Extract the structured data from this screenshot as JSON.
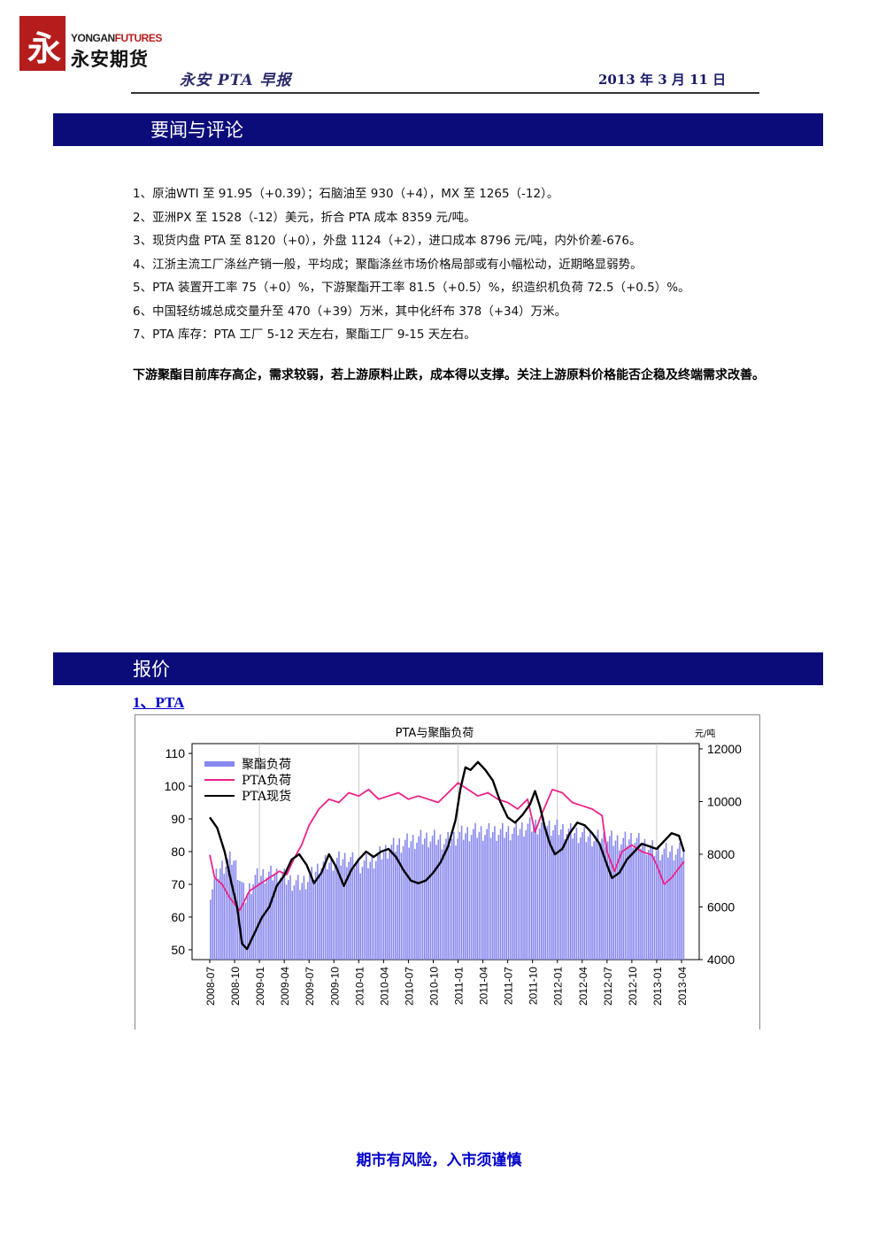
{
  "logo": {
    "en_prefix": "YONGAN",
    "en_suffix": "FUTURES",
    "cn": "永安期货",
    "mark_glyph": "永"
  },
  "header": {
    "title": "永安 PTA 早报",
    "date": "2013 年 3 月 11 日"
  },
  "sections": {
    "news_title": "要闻与评论",
    "quote_title": "报价"
  },
  "news": [
    "1、原油WTI 至 91.95（+0.39）；石脑油至 930（+4），MX 至 1265（-12）。",
    "2、亚洲PX 至 1528（-12）美元，折合 PTA 成本 8359 元/吨。",
    "3、现货内盘 PTA 至 8120（+0），外盘 1124（+2），进口成本 8796 元/吨，内外价差-676。",
    "4、江浙主流工厂涤丝产销一般，平均成；聚酯涤丝市场价格局部或有小幅松动，近期略显弱势。",
    "5、PTA 装置开工率 75（+0）%，下游聚酯开工率 81.5（+0.5）%，织造织机负荷 72.5（+0.5）%。",
    "6、中国轻纺城总成交量升至 470（+39）万米，其中化纤布 378（+34）万米。",
    "7、PTA 库存：PTA 工厂 5-12 天左右，聚酯工厂 9-15 天左右。"
  ],
  "summary": "下游聚酯目前库存高企，需求较弱，若上游原料止跌，成本得以支撑。关注上游原料价格能否企稳及终端需求改善。",
  "pta_label": "1、PTA",
  "footer": "期市有风险，入市须谨慎",
  "colors": {
    "banner": "#0b0b7a",
    "bars": "#8888ee",
    "pta_load": "#ee2288",
    "pta_spot": "#000000",
    "link": "#0000cc"
  },
  "chart_data": {
    "type": "bar+line",
    "title": "PTA与聚酯负荷",
    "y_right_unit": "元/吨",
    "y_left": {
      "ticks": [
        50,
        60,
        70,
        80,
        90,
        100,
        110
      ],
      "range": [
        47,
        113
      ]
    },
    "y_right": {
      "ticks": [
        4000,
        6000,
        8000,
        10000,
        12000
      ],
      "range": [
        4000,
        12200
      ]
    },
    "x_ticks": [
      "2008-07",
      "2008-10",
      "2009-01",
      "2009-04",
      "2009-07",
      "2009-10",
      "2010-01",
      "2010-04",
      "2010-07",
      "2010-10",
      "2011-01",
      "2011-04",
      "2011-07",
      "2011-10",
      "2012-01",
      "2012-04",
      "2012-07",
      "2012-10",
      "2013-01",
      "2013-04"
    ],
    "legend_placement": "top-left",
    "series": [
      {
        "name": "聚酯负荷",
        "kind": "bar",
        "axis": "left",
        "points": [
          [
            0,
            68
          ],
          [
            0.4,
            75
          ],
          [
            0.9,
            78
          ],
          [
            1.1,
            74
          ],
          [
            1.4,
            66
          ],
          [
            1.8,
            72
          ],
          [
            2.2,
            73
          ],
          [
            2.8,
            73
          ],
          [
            3.2,
            71
          ],
          [
            3.6,
            70
          ],
          [
            4,
            72
          ],
          [
            4.5,
            76
          ],
          [
            5,
            77
          ],
          [
            5.5,
            78
          ],
          [
            6,
            76
          ],
          [
            6.5,
            77
          ],
          [
            7,
            80
          ],
          [
            7.5,
            82
          ],
          [
            8,
            83
          ],
          [
            8.5,
            84
          ],
          [
            9,
            84
          ],
          [
            9.5,
            83
          ],
          [
            10,
            85
          ],
          [
            10.5,
            86
          ],
          [
            11,
            86
          ],
          [
            11.5,
            86
          ],
          [
            12,
            86
          ],
          [
            12.5,
            87
          ],
          [
            13,
            88
          ],
          [
            13.5,
            88
          ],
          [
            14,
            87
          ],
          [
            14.5,
            86
          ],
          [
            15,
            85
          ],
          [
            15.5,
            84
          ],
          [
            16,
            84
          ],
          [
            16.5,
            83
          ],
          [
            17,
            84
          ],
          [
            17.5,
            82
          ],
          [
            18,
            80
          ],
          [
            18.5,
            80
          ],
          [
            19,
            80
          ]
        ]
      },
      {
        "name": "PTA负荷",
        "kind": "line",
        "axis": "left",
        "points": [
          [
            0,
            79
          ],
          [
            0.2,
            72
          ],
          [
            0.5,
            70
          ],
          [
            0.8,
            66
          ],
          [
            1.2,
            62
          ],
          [
            1.6,
            68
          ],
          [
            2,
            70
          ],
          [
            2.4,
            72
          ],
          [
            2.8,
            74
          ],
          [
            3.1,
            73
          ],
          [
            3.4,
            78
          ],
          [
            3.7,
            82
          ],
          [
            4,
            88
          ],
          [
            4.4,
            93
          ],
          [
            4.8,
            96
          ],
          [
            5.2,
            95
          ],
          [
            5.6,
            98
          ],
          [
            6,
            97
          ],
          [
            6.4,
            99
          ],
          [
            6.8,
            96
          ],
          [
            7.2,
            97
          ],
          [
            7.6,
            98
          ],
          [
            8,
            96
          ],
          [
            8.4,
            97
          ],
          [
            8.8,
            96
          ],
          [
            9.2,
            95
          ],
          [
            9.6,
            98
          ],
          [
            10,
            101
          ],
          [
            10.4,
            99
          ],
          [
            10.8,
            97
          ],
          [
            11.2,
            98
          ],
          [
            11.6,
            96
          ],
          [
            12,
            95
          ],
          [
            12.4,
            93
          ],
          [
            12.8,
            96
          ],
          [
            13.1,
            86
          ],
          [
            13.4,
            92
          ],
          [
            13.8,
            99
          ],
          [
            14.2,
            98
          ],
          [
            14.6,
            95
          ],
          [
            15,
            94
          ],
          [
            15.4,
            93
          ],
          [
            15.8,
            91
          ],
          [
            16,
            80
          ],
          [
            16.3,
            74
          ],
          [
            16.6,
            80
          ],
          [
            17,
            82
          ],
          [
            17.4,
            80
          ],
          [
            17.8,
            79
          ],
          [
            18,
            76
          ],
          [
            18.3,
            70
          ],
          [
            18.6,
            72
          ],
          [
            18.9,
            75
          ],
          [
            19.1,
            77
          ]
        ]
      },
      {
        "name": "PTA现货",
        "kind": "line",
        "axis": "right",
        "points": [
          [
            0,
            9400
          ],
          [
            0.3,
            9000
          ],
          [
            0.6,
            8100
          ],
          [
            0.9,
            6800
          ],
          [
            1.1,
            6000
          ],
          [
            1.3,
            4600
          ],
          [
            1.5,
            4400
          ],
          [
            1.8,
            5000
          ],
          [
            2.1,
            5600
          ],
          [
            2.4,
            6000
          ],
          [
            2.7,
            6800
          ],
          [
            3.0,
            7200
          ],
          [
            3.3,
            7800
          ],
          [
            3.6,
            8000
          ],
          [
            3.9,
            7600
          ],
          [
            4.2,
            6900
          ],
          [
            4.5,
            7300
          ],
          [
            4.8,
            8000
          ],
          [
            5.1,
            7500
          ],
          [
            5.4,
            6800
          ],
          [
            5.7,
            7400
          ],
          [
            6.0,
            7800
          ],
          [
            6.3,
            8100
          ],
          [
            6.6,
            7900
          ],
          [
            6.9,
            8100
          ],
          [
            7.2,
            8200
          ],
          [
            7.5,
            7900
          ],
          [
            7.8,
            7400
          ],
          [
            8.1,
            7000
          ],
          [
            8.4,
            6900
          ],
          [
            8.7,
            7000
          ],
          [
            9.0,
            7300
          ],
          [
            9.3,
            7700
          ],
          [
            9.6,
            8300
          ],
          [
            9.9,
            9300
          ],
          [
            10.1,
            10500
          ],
          [
            10.3,
            11300
          ],
          [
            10.5,
            11200
          ],
          [
            10.8,
            11500
          ],
          [
            11.1,
            11200
          ],
          [
            11.4,
            10800
          ],
          [
            11.7,
            10000
          ],
          [
            12.0,
            9400
          ],
          [
            12.3,
            9200
          ],
          [
            12.6,
            9500
          ],
          [
            12.9,
            9900
          ],
          [
            13.1,
            10400
          ],
          [
            13.3,
            9800
          ],
          [
            13.5,
            9000
          ],
          [
            13.7,
            8400
          ],
          [
            13.9,
            8000
          ],
          [
            14.2,
            8200
          ],
          [
            14.5,
            8800
          ],
          [
            14.8,
            9200
          ],
          [
            15.1,
            9100
          ],
          [
            15.4,
            8800
          ],
          [
            15.7,
            8400
          ],
          [
            16.0,
            7600
          ],
          [
            16.2,
            7100
          ],
          [
            16.5,
            7300
          ],
          [
            16.8,
            7800
          ],
          [
            17.1,
            8100
          ],
          [
            17.4,
            8400
          ],
          [
            17.7,
            8300
          ],
          [
            18.0,
            8200
          ],
          [
            18.3,
            8500
          ],
          [
            18.6,
            8800
          ],
          [
            18.9,
            8700
          ],
          [
            19.1,
            8100
          ]
        ]
      }
    ]
  }
}
